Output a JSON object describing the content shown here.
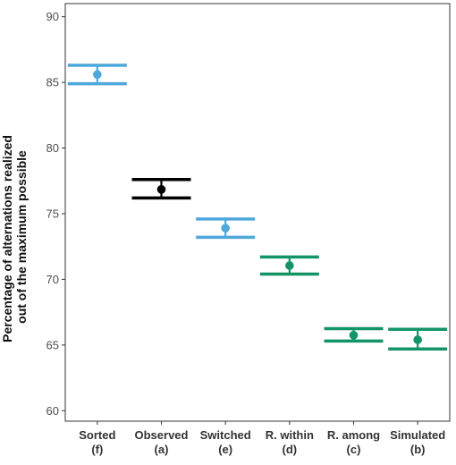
{
  "chart_data": {
    "type": "errorbar",
    "ylabel": "Percentage of alternations realized\nout of the maximum possible",
    "ylim": [
      59.2,
      91
    ],
    "yticks": [
      60,
      65,
      70,
      75,
      80,
      85,
      90
    ],
    "grid": false,
    "categories": [
      {
        "label": "Sorted",
        "sub": "(f)",
        "mean": 85.6,
        "lower": 84.9,
        "upper": 86.3,
        "color": "#4ea8dc"
      },
      {
        "label": "Observed",
        "sub": "(a)",
        "mean": 76.85,
        "lower": 76.2,
        "upper": 77.6,
        "color": "#000000"
      },
      {
        "label": "Switched",
        "sub": "(e)",
        "mean": 73.9,
        "lower": 73.2,
        "upper": 74.6,
        "color": "#4ea8dc"
      },
      {
        "label": "R. within",
        "sub": "(d)",
        "mean": 71.05,
        "lower": 70.4,
        "upper": 71.7,
        "color": "#129467"
      },
      {
        "label": "R. among",
        "sub": "(c)",
        "mean": 65.75,
        "lower": 65.3,
        "upper": 66.25,
        "color": "#129467"
      },
      {
        "label": "Simulated",
        "sub": "(b)",
        "mean": 65.4,
        "lower": 64.7,
        "upper": 66.2,
        "color": "#129467"
      }
    ]
  }
}
